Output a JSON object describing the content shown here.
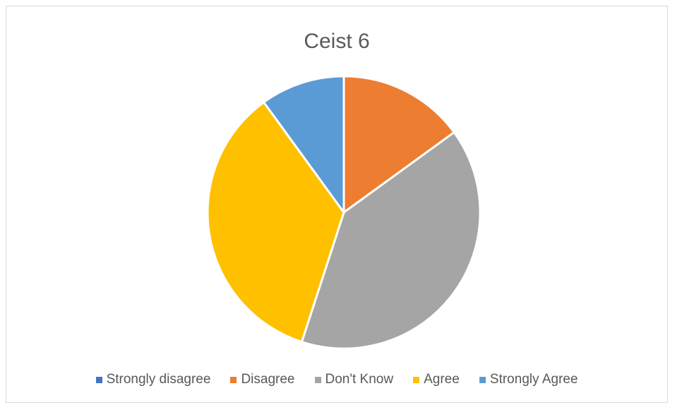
{
  "chart_data": {
    "type": "pie",
    "title": "Ceist 6",
    "categories": [
      "Strongly disagree",
      "Disagree",
      "Don't Know",
      "Agree",
      "Strongly Agree"
    ],
    "values": [
      0,
      15,
      40,
      35,
      10
    ],
    "colors": [
      "#4472c4",
      "#ed7d31",
      "#a5a5a5",
      "#ffc000",
      "#5b9bd5"
    ],
    "legend": "bottom",
    "start_angle_deg": 0,
    "direction": "clockwise"
  }
}
